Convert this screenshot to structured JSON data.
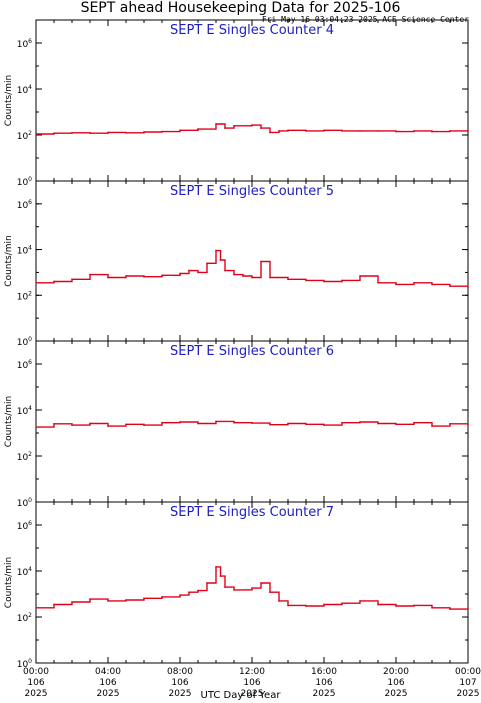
{
  "title": "SEPT ahead Housekeeping Data for 2025-106",
  "timestamp": "Fri May 16 03:04:23 2025 ACE Science Center",
  "xlabel": "UTC Day of Year",
  "colors": {
    "panel_title": "#1c1cc0",
    "trace": "#e0001a",
    "axes": "#000000"
  },
  "chart_data": [
    {
      "type": "line",
      "title": "SEPT E Singles Counter 4",
      "ylabel": "Counts/min",
      "yscale": "log",
      "ylim": [
        1,
        10000000
      ],
      "yticks": [
        "10^0",
        "10^2",
        "10^4",
        "10^6"
      ],
      "xlim": [
        0,
        24
      ],
      "xticks": [
        {
          "time": "00:00",
          "day": "106",
          "year": "2025"
        },
        {
          "time": "04:00",
          "day": "106",
          "year": "2025"
        },
        {
          "time": "08:00",
          "day": "106",
          "year": "2025"
        },
        {
          "time": "12:00",
          "day": "106",
          "year": "2025"
        },
        {
          "time": "16:00",
          "day": "106",
          "year": "2025"
        },
        {
          "time": "20:00",
          "day": "106",
          "year": "2025"
        },
        {
          "time": "00:00",
          "day": "107",
          "year": "2025"
        }
      ],
      "x_hours": [
        0,
        1,
        2,
        3,
        4,
        5,
        6,
        7,
        8,
        9,
        10,
        10.5,
        11,
        12,
        12.5,
        13,
        13.5,
        14,
        15,
        16,
        17,
        18,
        19,
        20,
        21,
        22,
        23,
        24
      ],
      "values": [
        110,
        120,
        125,
        120,
        130,
        125,
        135,
        140,
        160,
        180,
        300,
        200,
        250,
        270,
        200,
        130,
        150,
        160,
        150,
        160,
        150,
        150,
        150,
        140,
        150,
        140,
        150,
        140
      ]
    },
    {
      "type": "line",
      "title": "SEPT E Singles Counter 5",
      "ylabel": "Counts/min",
      "yscale": "log",
      "ylim": [
        1,
        10000000
      ],
      "yticks": [
        "10^0",
        "10^2",
        "10^4",
        "10^6"
      ],
      "xlim": [
        0,
        24
      ],
      "xticks": [
        {
          "time": "00:00",
          "day": "106",
          "year": "2025"
        },
        {
          "time": "04:00",
          "day": "106",
          "year": "2025"
        },
        {
          "time": "08:00",
          "day": "106",
          "year": "2025"
        },
        {
          "time": "12:00",
          "day": "106",
          "year": "2025"
        },
        {
          "time": "16:00",
          "day": "106",
          "year": "2025"
        },
        {
          "time": "20:00",
          "day": "106",
          "year": "2025"
        },
        {
          "time": "00:00",
          "day": "107",
          "year": "2025"
        }
      ],
      "x_hours": [
        0,
        1,
        2,
        3,
        4,
        5,
        6,
        7,
        8,
        8.5,
        9,
        9.5,
        10,
        10.25,
        10.5,
        11,
        11.5,
        12,
        12.5,
        13,
        14,
        15,
        16,
        17,
        18,
        19,
        20,
        21,
        22,
        23,
        24
      ],
      "values": [
        350,
        400,
        500,
        800,
        600,
        700,
        650,
        750,
        900,
        1200,
        1000,
        2500,
        9000,
        3500,
        1200,
        800,
        700,
        600,
        3000,
        600,
        500,
        450,
        400,
        450,
        700,
        350,
        300,
        350,
        300,
        250,
        220
      ]
    },
    {
      "type": "line",
      "title": "SEPT E Singles Counter 6",
      "ylabel": "Counts/min",
      "yscale": "log",
      "ylim": [
        1,
        10000000
      ],
      "yticks": [
        "10^0",
        "10^2",
        "10^4",
        "10^6"
      ],
      "xlim": [
        0,
        24
      ],
      "xticks": [
        {
          "time": "00:00",
          "day": "106",
          "year": "2025"
        },
        {
          "time": "04:00",
          "day": "106",
          "year": "2025"
        },
        {
          "time": "08:00",
          "day": "106",
          "year": "2025"
        },
        {
          "time": "12:00",
          "day": "106",
          "year": "2025"
        },
        {
          "time": "16:00",
          "day": "106",
          "year": "2025"
        },
        {
          "time": "20:00",
          "day": "106",
          "year": "2025"
        },
        {
          "time": "00:00",
          "day": "107",
          "year": "2025"
        }
      ],
      "x_hours": [
        0,
        1,
        2,
        3,
        4,
        5,
        6,
        7,
        8,
        9,
        10,
        11,
        12,
        13,
        14,
        15,
        16,
        17,
        18,
        19,
        20,
        21,
        22,
        23,
        24
      ],
      "values": [
        1800,
        2500,
        2200,
        2600,
        2000,
        2400,
        2200,
        2800,
        3000,
        2600,
        3200,
        2800,
        2700,
        2300,
        2600,
        2400,
        2200,
        2800,
        3000,
        2600,
        2400,
        2800,
        2000,
        2500,
        2300
      ]
    },
    {
      "type": "line",
      "title": "SEPT E Singles Counter 7",
      "ylabel": "Counts/min",
      "yscale": "log",
      "ylim": [
        1,
        10000000
      ],
      "yticks": [
        "10^0",
        "10^2",
        "10^4",
        "10^6"
      ],
      "xlim": [
        0,
        24
      ],
      "xticks": [
        {
          "time": "00:00",
          "day": "106",
          "year": "2025"
        },
        {
          "time": "04:00",
          "day": "106",
          "year": "2025"
        },
        {
          "time": "08:00",
          "day": "106",
          "year": "2025"
        },
        {
          "time": "12:00",
          "day": "106",
          "year": "2025"
        },
        {
          "time": "16:00",
          "day": "106",
          "year": "2025"
        },
        {
          "time": "20:00",
          "day": "106",
          "year": "2025"
        },
        {
          "time": "00:00",
          "day": "107",
          "year": "2025"
        }
      ],
      "x_hours": [
        0,
        1,
        2,
        3,
        4,
        5,
        6,
        7,
        8,
        8.5,
        9,
        9.5,
        10,
        10.25,
        10.5,
        11,
        12,
        12.5,
        13,
        13.5,
        14,
        15,
        16,
        17,
        18,
        19,
        20,
        21,
        22,
        23,
        24
      ],
      "values": [
        250,
        350,
        450,
        600,
        500,
        550,
        650,
        750,
        900,
        1200,
        1400,
        3000,
        15000,
        6000,
        2000,
        1500,
        1800,
        3000,
        1200,
        500,
        320,
        300,
        350,
        400,
        500,
        350,
        300,
        320,
        250,
        220,
        240
      ]
    }
  ]
}
